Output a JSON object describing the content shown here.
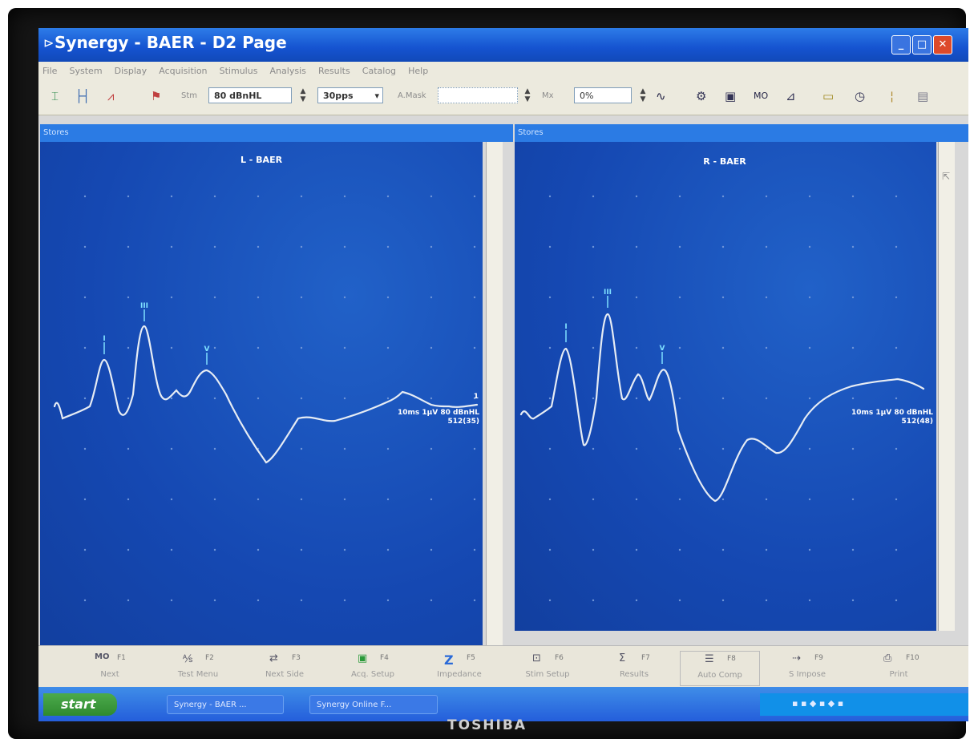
{
  "window": {
    "title": "Synergy  -  BAER  -  D2 Page",
    "min_label": "_",
    "max_label": "□",
    "close_label": "✕"
  },
  "menu": [
    "File",
    "System",
    "Display",
    "Acquisition",
    "Stimulus",
    "Analysis",
    "Results",
    "Catalog",
    "Help"
  ],
  "toolbar": {
    "stim_label": "Stm",
    "stim_value": "80 dBnHL",
    "rate_value": "30pps",
    "mask_label": "A.Mask",
    "mask_value": "",
    "mix_label": "Mx",
    "mix_value": "0%"
  },
  "panels": {
    "left": {
      "header": "Stores",
      "trace_title": "L - BAER",
      "peak_labels": [
        "I",
        "III",
        "V"
      ],
      "annotation_line1": "10ms 1µV 80 dBnHL",
      "annotation_line2": "512(35)",
      "marker_number": "1"
    },
    "right": {
      "header": "Stores",
      "trace_title": "R - BAER",
      "peak_labels": [
        "I",
        "III",
        "V"
      ],
      "annotation_line1": "10ms 1µV 80 dBnHL",
      "annotation_line2": "512(48)"
    }
  },
  "fkeys": [
    {
      "num": "F1",
      "label": "Next",
      "icon": "mo-icon"
    },
    {
      "num": "F2",
      "label": "Test Menu",
      "icon": "test-menu-icon"
    },
    {
      "num": "F3",
      "label": "Next Side",
      "icon": "next-side-icon"
    },
    {
      "num": "F4",
      "label": "Acq. Setup",
      "icon": "acq-setup-icon"
    },
    {
      "num": "F5",
      "label": "Impedance",
      "icon": "impedance-icon"
    },
    {
      "num": "F6",
      "label": "Stim Setup",
      "icon": "stim-setup-icon"
    },
    {
      "num": "F7",
      "label": "Results",
      "icon": "results-icon"
    },
    {
      "num": "F8",
      "label": "Auto Comp",
      "icon": "auto-comp-icon"
    },
    {
      "num": "F9",
      "label": "S Impose",
      "icon": "superimpose-icon"
    },
    {
      "num": "F10",
      "label": "Print",
      "icon": "print-icon"
    }
  ],
  "taskbar": {
    "start_label": "start",
    "tasks": [
      "Synergy - BAER ...",
      "Synergy Online F..."
    ]
  },
  "monitor_brand": "TOSHIBA"
}
